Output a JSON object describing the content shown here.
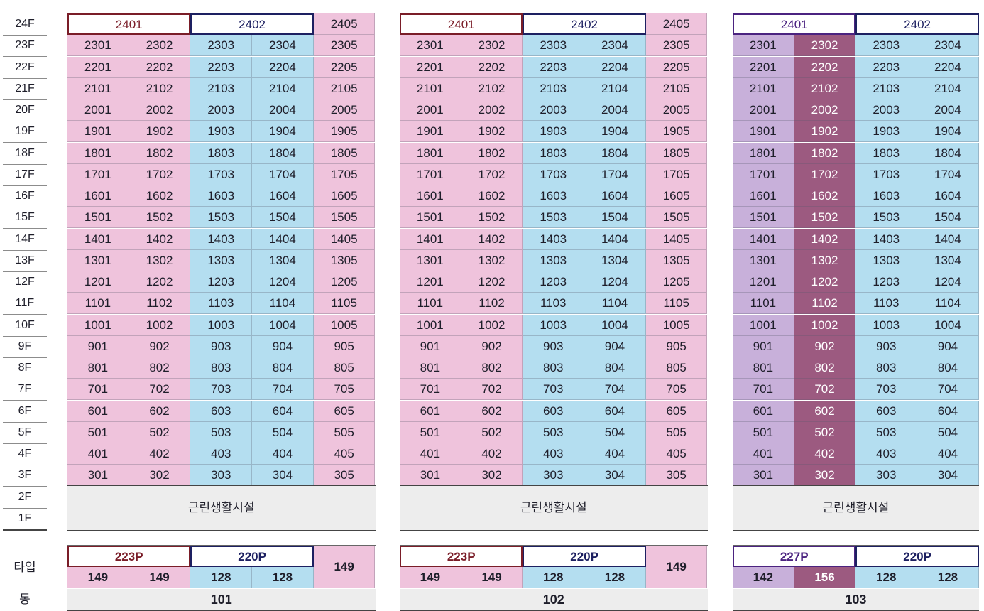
{
  "floor_labels": [
    "24F",
    "23F",
    "22F",
    "21F",
    "20F",
    "19F",
    "18F",
    "17F",
    "16F",
    "15F",
    "14F",
    "13F",
    "12F",
    "11F",
    "10F",
    "9F",
    "8F",
    "7F",
    "6F",
    "5F",
    "4F",
    "3F",
    "2F",
    "1F"
  ],
  "type_label": "타입",
  "dong_label": "동",
  "shop_label": "근린생활시설",
  "colors": {
    "pink": "#efc3dc",
    "blue": "#b4def0",
    "lavender": "#c8b0da",
    "plum": "#9c5a80",
    "maroon_border": "#7a1d28",
    "navy_border": "#1d2061",
    "purple_border": "#4b2380",
    "facility_gray": "#ededed"
  },
  "buildings": [
    {
      "dong": "101",
      "top": [
        {
          "label": "2401",
          "style": "dup-maroon"
        },
        {
          "label": "2402",
          "style": "dup-navy"
        },
        {
          "label": "2405",
          "style": "pink"
        }
      ],
      "columns": [
        {
          "suffix": "01",
          "color": "pink"
        },
        {
          "suffix": "02",
          "color": "pink"
        },
        {
          "suffix": "03",
          "color": "blue"
        },
        {
          "suffix": "04",
          "color": "blue"
        },
        {
          "suffix": "05",
          "color": "pink"
        }
      ],
      "type_groups": [
        {
          "label": "223P",
          "style": "dup-maroon"
        },
        {
          "label": "220P",
          "style": "dup-navy"
        }
      ],
      "types": [
        "149",
        "149",
        "128",
        "128"
      ],
      "last_type": "149"
    },
    {
      "dong": "102",
      "top": [
        {
          "label": "2401",
          "style": "dup-maroon"
        },
        {
          "label": "2402",
          "style": "dup-navy"
        },
        {
          "label": "2405",
          "style": "pink"
        }
      ],
      "columns": [
        {
          "suffix": "01",
          "color": "pink"
        },
        {
          "suffix": "02",
          "color": "pink"
        },
        {
          "suffix": "03",
          "color": "blue"
        },
        {
          "suffix": "04",
          "color": "blue"
        },
        {
          "suffix": "05",
          "color": "pink"
        }
      ],
      "type_groups": [
        {
          "label": "223P",
          "style": "dup-maroon"
        },
        {
          "label": "220P",
          "style": "dup-navy"
        }
      ],
      "types": [
        "149",
        "149",
        "128",
        "128"
      ],
      "last_type": "149"
    },
    {
      "dong": "103",
      "top": [
        {
          "label": "2401",
          "style": "dup-purple"
        },
        {
          "label": "2402",
          "style": "dup-navy"
        }
      ],
      "columns": [
        {
          "suffix": "01",
          "color": "lav"
        },
        {
          "suffix": "02",
          "color": "plum"
        },
        {
          "suffix": "03",
          "color": "blue"
        },
        {
          "suffix": "04",
          "color": "blue"
        }
      ],
      "type_groups": [
        {
          "label": "227P",
          "style": "dup-purple"
        },
        {
          "label": "220P",
          "style": "dup-navy"
        }
      ],
      "types": [
        "142",
        "156",
        "128",
        "128"
      ],
      "last_type": ""
    }
  ]
}
